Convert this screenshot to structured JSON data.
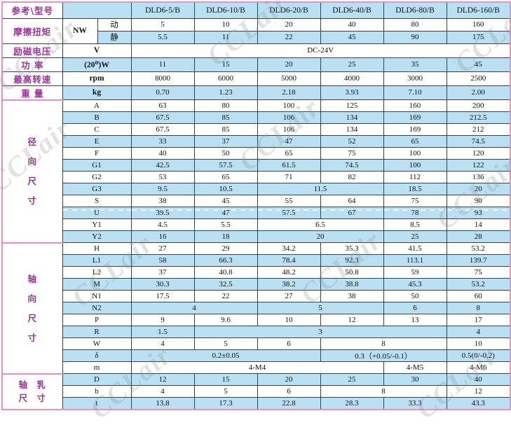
{
  "watermark": {
    "text": "CCLair",
    "color": "#8f8f8f"
  },
  "colors": {
    "row_band_blue": "#b9e0f3",
    "label_purple": "#993399",
    "grid_dark": "#3f3f3f",
    "frame_pink": "#ee8fc3"
  },
  "table": {
    "rows": [
      {
        "header": true,
        "band": true,
        "h": 23,
        "cells": [
          {
            "t": "参考\\型号",
            "cls": "corner",
            "name": "corner-label"
          },
          {
            "t": "",
            "cs": 2,
            "name": "header-spacer-cell"
          },
          {
            "t": "DLD6-5/B",
            "cls": "model",
            "name": "model-header"
          },
          {
            "t": "DLD6-10/B",
            "cls": "model",
            "name": "model-header"
          },
          {
            "t": "DLD6-20/B",
            "cls": "model",
            "name": "model-header"
          },
          {
            "t": "DLD6-40/B",
            "cls": "model",
            "name": "model-header"
          },
          {
            "t": "DLD6-80/B",
            "cls": "model",
            "name": "model-header"
          },
          {
            "t": "DLD6-160/B",
            "cls": "model",
            "name": "model-header"
          }
        ]
      },
      {
        "band": false,
        "h": 18,
        "cells": [
          {
            "t": "摩擦扭矩",
            "cls": "lbl",
            "rs": 2,
            "name": "row-label-friction-torque"
          },
          {
            "t": "NW",
            "cls": "unit",
            "rs": 2,
            "name": "unit-label"
          },
          {
            "t": "动",
            "cls": "sub",
            "name": "sub-label-dynamic"
          },
          {
            "t": "5"
          },
          {
            "t": "10"
          },
          {
            "t": "20"
          },
          {
            "t": "40"
          },
          {
            "t": "80"
          },
          {
            "t": "160"
          }
        ]
      },
      {
        "band": true,
        "h": 18,
        "cells": [
          {
            "t": "静",
            "cls": "sub",
            "name": "sub-label-static"
          },
          {
            "t": "5.5"
          },
          {
            "t": "11"
          },
          {
            "t": "22"
          },
          {
            "t": "45"
          },
          {
            "t": "90"
          },
          {
            "t": "175"
          }
        ]
      },
      {
        "band": false,
        "h": 18,
        "cells": [
          {
            "t": "励磁电压",
            "cls": "lbl",
            "name": "row-label-excitation-voltage"
          },
          {
            "t": "V",
            "cls": "unit",
            "cs": 2,
            "name": "unit-label"
          },
          {
            "t": "DC-24V",
            "cs": 6
          }
        ]
      },
      {
        "band": true,
        "h": 18,
        "cells": [
          {
            "t": "功 率",
            "cls": "lbl",
            "name": "row-label-power"
          },
          {
            "t": "(20⁰)W",
            "cls": "unit",
            "cs": 2,
            "name": "unit-label"
          },
          {
            "t": "11"
          },
          {
            "t": "15"
          },
          {
            "t": "20"
          },
          {
            "t": "25"
          },
          {
            "t": "35"
          },
          {
            "t": "45"
          }
        ]
      },
      {
        "band": false,
        "h": 18,
        "cells": [
          {
            "t": "最高转速",
            "cls": "lbl",
            "name": "row-label-max-speed"
          },
          {
            "t": "rpm",
            "cls": "unit",
            "cs": 2,
            "name": "unit-label"
          },
          {
            "t": "8000"
          },
          {
            "t": "6000"
          },
          {
            "t": "5000"
          },
          {
            "t": "4000"
          },
          {
            "t": "3000"
          },
          {
            "t": "2500"
          }
        ]
      },
      {
        "band": true,
        "h": 18,
        "cells": [
          {
            "t": "重 量",
            "cls": "lbl",
            "name": "row-label-weight"
          },
          {
            "t": "kg",
            "cls": "unit",
            "cs": 2,
            "name": "unit-label"
          },
          {
            "t": "0.70"
          },
          {
            "t": "1.23"
          },
          {
            "t": "2.18"
          },
          {
            "t": "3.93"
          },
          {
            "t": "7.10"
          },
          {
            "t": "2.00"
          }
        ]
      },
      {
        "band": false,
        "cells": [
          {
            "chars": [
              "径",
              "向",
              "尺",
              "寸"
            ],
            "cls": "grp",
            "rs": 12,
            "name": "group-label-radial-dimensions"
          },
          {
            "t": "A",
            "cls": "dim",
            "cs": 2
          },
          {
            "t": "63"
          },
          {
            "t": "80"
          },
          {
            "t": "100"
          },
          {
            "t": "125"
          },
          {
            "t": "160"
          },
          {
            "t": "200"
          }
        ]
      },
      {
        "band": true,
        "cells": [
          {
            "t": "B",
            "cls": "dim",
            "cs": 2
          },
          {
            "t": "67.5"
          },
          {
            "t": "85"
          },
          {
            "t": "106"
          },
          {
            "t": "134"
          },
          {
            "t": "169"
          },
          {
            "t": "212.5"
          }
        ]
      },
      {
        "band": false,
        "cells": [
          {
            "t": "C",
            "cls": "dim",
            "cs": 2
          },
          {
            "t": "67.5"
          },
          {
            "t": "85"
          },
          {
            "t": "106"
          },
          {
            "t": "134"
          },
          {
            "t": "169"
          },
          {
            "t": "212"
          }
        ]
      },
      {
        "band": true,
        "cells": [
          {
            "t": "E",
            "cls": "dim",
            "cs": 2
          },
          {
            "t": "33"
          },
          {
            "t": "37"
          },
          {
            "t": "47"
          },
          {
            "t": "52"
          },
          {
            "t": "65"
          },
          {
            "t": "74.5"
          }
        ]
      },
      {
        "band": false,
        "cells": [
          {
            "t": "F",
            "cls": "dim",
            "cs": 2
          },
          {
            "t": "40"
          },
          {
            "t": "50"
          },
          {
            "t": "65"
          },
          {
            "t": "75"
          },
          {
            "t": "100"
          },
          {
            "t": "120"
          }
        ]
      },
      {
        "band": true,
        "cells": [
          {
            "t": "G1",
            "cls": "dim",
            "cs": 2
          },
          {
            "t": "42.5"
          },
          {
            "t": "57.5"
          },
          {
            "t": "61.5"
          },
          {
            "t": "74.5"
          },
          {
            "t": "100"
          },
          {
            "t": "122"
          }
        ]
      },
      {
        "band": false,
        "cells": [
          {
            "t": "G2",
            "cls": "dim",
            "cs": 2
          },
          {
            "t": "53"
          },
          {
            "t": "65"
          },
          {
            "t": "71"
          },
          {
            "t": "82"
          },
          {
            "t": "112"
          },
          {
            "t": "136"
          }
        ]
      },
      {
        "band": true,
        "cells": [
          {
            "t": "G3",
            "cls": "dim",
            "cs": 2
          },
          {
            "t": "9.5"
          },
          {
            "t": "10.5"
          },
          {
            "t": "11.5",
            "cs": 2
          },
          {
            "t": "18.5"
          },
          {
            "t": "20"
          }
        ]
      },
      {
        "band": false,
        "cells": [
          {
            "t": "S",
            "cls": "dim",
            "cs": 2
          },
          {
            "t": "38"
          },
          {
            "t": "45"
          },
          {
            "t": "55"
          },
          {
            "t": "64"
          },
          {
            "t": "75"
          },
          {
            "t": "90"
          }
        ]
      },
      {
        "band": true,
        "dashed": true,
        "cells": [
          {
            "t": "U",
            "cls": "dim",
            "cs": 2
          },
          {
            "t": "39.5"
          },
          {
            "t": "47"
          },
          {
            "t": "57.5"
          },
          {
            "t": "67"
          },
          {
            "t": "78"
          },
          {
            "t": "93"
          }
        ]
      },
      {
        "band": false,
        "cells": [
          {
            "t": "Y1",
            "cls": "dim",
            "cs": 2
          },
          {
            "t": "4.5"
          },
          {
            "t": "5.5"
          },
          {
            "t": "6.5",
            "cs": 2
          },
          {
            "t": "8.5"
          },
          {
            "t": "14"
          }
        ]
      },
      {
        "band": true,
        "cells": [
          {
            "t": "Y2",
            "cls": "dim",
            "cs": 2
          },
          {
            "t": "16"
          },
          {
            "t": "18"
          },
          {
            "t": "20",
            "cs": 2
          },
          {
            "t": "25"
          },
          {
            "t": "28"
          }
        ]
      },
      {
        "band": false,
        "cells": [
          {
            "chars": [
              "轴",
              "向",
              "尺",
              "寸"
            ],
            "cls": "grp",
            "rs": 11,
            "name": "group-label-axial-dimensions"
          },
          {
            "t": "H",
            "cls": "dim",
            "cs": 2
          },
          {
            "t": "27"
          },
          {
            "t": "29"
          },
          {
            "t": "34.2"
          },
          {
            "t": "35.3"
          },
          {
            "t": "41.5"
          },
          {
            "t": "53.2"
          }
        ]
      },
      {
        "band": true,
        "cells": [
          {
            "t": "L1",
            "cls": "dim",
            "cs": 2
          },
          {
            "t": "58"
          },
          {
            "t": "66.3"
          },
          {
            "t": "78.4"
          },
          {
            "t": "92.3"
          },
          {
            "t": "113.1"
          },
          {
            "t": "139.7"
          }
        ]
      },
      {
        "band": false,
        "cells": [
          {
            "t": "L2",
            "cls": "dim",
            "cs": 2
          },
          {
            "t": "37"
          },
          {
            "t": "40.8"
          },
          {
            "t": "48.2"
          },
          {
            "t": "50.8"
          },
          {
            "t": "59"
          },
          {
            "t": "75"
          }
        ]
      },
      {
        "band": true,
        "cells": [
          {
            "t": "M",
            "cls": "dim",
            "cs": 2
          },
          {
            "t": "30.3"
          },
          {
            "t": "32.5"
          },
          {
            "t": "38.2"
          },
          {
            "t": "38.8"
          },
          {
            "t": "45.3"
          },
          {
            "t": "53.2"
          }
        ]
      },
      {
        "band": false,
        "cells": [
          {
            "t": "N1",
            "cls": "dim",
            "cs": 2
          },
          {
            "t": "17.5"
          },
          {
            "t": "22"
          },
          {
            "t": "27"
          },
          {
            "t": "38"
          },
          {
            "t": "50"
          },
          {
            "t": "60"
          }
        ]
      },
      {
        "band": true,
        "cells": [
          {
            "t": "N2",
            "cls": "dim",
            "cs": 2
          },
          {
            "t": "4",
            "cs": 2
          },
          {
            "t": "5",
            "cs": 2
          },
          {
            "t": "6"
          },
          {
            "t": "8"
          }
        ]
      },
      {
        "band": false,
        "cells": [
          {
            "t": "P",
            "cls": "dim",
            "cs": 2
          },
          {
            "t": "9"
          },
          {
            "t": "9.6"
          },
          {
            "t": "10"
          },
          {
            "t": "12"
          },
          {
            "t": "13"
          },
          {
            "t": "17"
          }
        ]
      },
      {
        "band": true,
        "cells": [
          {
            "t": "R",
            "cls": "dim",
            "cs": 2
          },
          {
            "t": "1.5"
          },
          {
            "t": "3",
            "cs": 4
          },
          {
            "t": "4"
          }
        ]
      },
      {
        "band": false,
        "cells": [
          {
            "t": "W",
            "cls": "dim",
            "cs": 2
          },
          {
            "t": "4"
          },
          {
            "t": "5"
          },
          {
            "t": "6"
          },
          {
            "t": "8",
            "cs": 2
          },
          {
            "t": "10"
          }
        ]
      },
      {
        "band": true,
        "cells": [
          {
            "t": "δ",
            "cls": "dim",
            "cs": 2
          },
          {
            "t": "0.2±0.05",
            "cs": 3
          },
          {
            "t": "0.3（+0.05/-0.1）",
            "cs": 2
          },
          {
            "t": "0.5(0/-0.2)"
          }
        ]
      },
      {
        "band": false,
        "cells": [
          {
            "t": "m",
            "cls": "dim",
            "cs": 2
          },
          {
            "t": "4-M4",
            "cs": 4
          },
          {
            "t": "4-M5"
          },
          {
            "t": "4-M6"
          }
        ]
      },
      {
        "band": true,
        "cells": [
          {
            "lines": [
              "轴 乳",
              "尺 寸"
            ],
            "cls": "grp2",
            "rs": 3,
            "name": "group-label-shaft-bore-dimensions"
          },
          {
            "t": "D",
            "cls": "dim",
            "cs": 2
          },
          {
            "t": "12"
          },
          {
            "t": "15"
          },
          {
            "t": "20"
          },
          {
            "t": "25"
          },
          {
            "t": "30"
          },
          {
            "t": "40"
          }
        ]
      },
      {
        "band": false,
        "cells": [
          {
            "t": "b",
            "cls": "dim",
            "cs": 2
          },
          {
            "t": "4"
          },
          {
            "t": "5"
          },
          {
            "t": "6"
          },
          {
            "t": "8",
            "cs": 2
          },
          {
            "t": "12"
          }
        ]
      },
      {
        "band": true,
        "cells": [
          {
            "t": "t",
            "cls": "dim",
            "cs": 2
          },
          {
            "t": "13.8"
          },
          {
            "t": "17.3"
          },
          {
            "t": "22.8"
          },
          {
            "t": "28.3"
          },
          {
            "t": "33.3"
          },
          {
            "t": "43.3"
          }
        ]
      }
    ]
  }
}
